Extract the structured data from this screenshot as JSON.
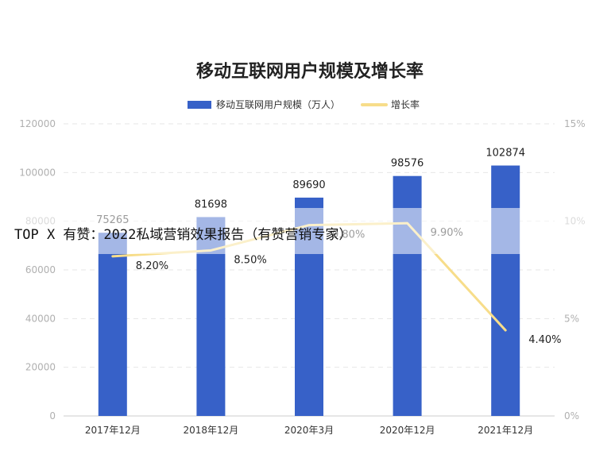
{
  "chart_data": {
    "type": "bar",
    "title": "移动互联网用户规模及增长率",
    "categories": [
      "2017年12月",
      "2018年12月",
      "2020年3月",
      "2020年12月",
      "2021年12月"
    ],
    "series": [
      {
        "name": "移动互联网用户规模（万人）",
        "type": "bar",
        "axis": "left",
        "color": "#3761c8",
        "values": [
          75265,
          81698,
          89690,
          98576,
          102874
        ],
        "labels": [
          "75265",
          "81698",
          "89690",
          "98576",
          "102874"
        ]
      },
      {
        "name": "增长率",
        "type": "line",
        "axis": "right",
        "color": "#f7dd8a",
        "values": [
          8.2,
          8.5,
          9.8,
          9.9,
          4.4
        ],
        "labels": [
          "8.20%",
          "8.50%",
          "9.80%",
          "9.90%",
          "4.40%"
        ]
      }
    ],
    "ylim": [
      0,
      120000
    ],
    "yticks": [
      "0",
      "20000",
      "40000",
      "60000",
      "80000",
      "100000",
      "120000"
    ],
    "y2lim": [
      0,
      15
    ],
    "y2ticks": [
      "0%",
      "5%",
      "10%",
      "15%"
    ],
    "grid": true,
    "legend_position": "top-center"
  },
  "watermark": "TOP X 有赞：2022私域营销效果报告（有赞营销专家）"
}
